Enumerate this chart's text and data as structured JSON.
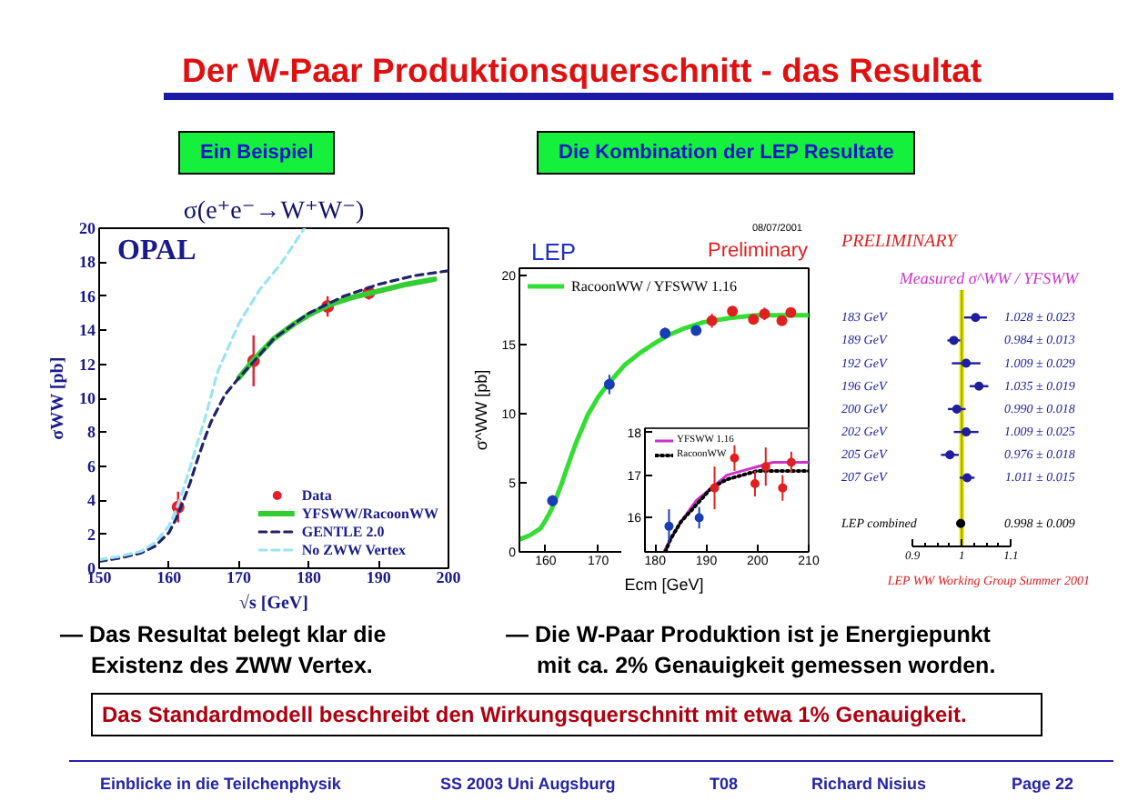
{
  "chart_data": [
    {
      "type": "other",
      "title": "Der W-Paar Produktionsquerschnitt - das Resultat",
      "annotations": [
        "Ein Beispiel",
        "Die Kombination der LEP Resultate",
        "— Das Resultat belegt klar die Existenz des ZWW Vertex.",
        "— Die W-Paar Produktion ist je Energiepunkt mit ca. 2% Genauigkeit gemessen worden.",
        "Das Standardmodell beschreibt den Wirkungsquerschnitt mit etwa 1% Genauigkeit.",
        "Einblicke in die Teilchenphysik",
        "SS 2003 Uni Augsburg",
        "T08",
        "Richard Nisius",
        "Page 22"
      ]
    },
    {
      "type": "line",
      "title": "σ(e⁺e⁻→W⁺W⁻)",
      "xlabel": "√s [GeV]",
      "ylabel": "σWW [pb]",
      "annotations": [
        "OPAL"
      ],
      "xlim": [
        150,
        200
      ],
      "xticks": [
        150,
        160,
        170,
        180,
        190,
        200
      ],
      "ylim": [
        0,
        20
      ],
      "yticks": [
        0,
        2,
        4,
        6,
        8,
        10,
        12,
        14,
        16,
        18,
        20
      ],
      "legend": "bottom right",
      "series": [
        {
          "name": "Data",
          "type": "scatter",
          "color": "#e4202c",
          "marker": "circle",
          "x": [
            161.3,
            172.1,
            182.7,
            188.6
          ],
          "values": [
            3.6,
            12.2,
            15.4,
            16.2
          ],
          "errors": [
            0.9,
            1.5,
            0.6,
            0.4
          ]
        },
        {
          "name": "YFSWW/RacoonWW",
          "type": "line",
          "color": "#33cc33",
          "line_style": "solid",
          "x": [
            170,
            172,
            175,
            178,
            180,
            183,
            186,
            190,
            194,
            198
          ],
          "values": [
            11.2,
            12.2,
            13.5,
            14.4,
            14.9,
            15.5,
            15.9,
            16.3,
            16.7,
            17.0
          ]
        },
        {
          "name": "GENTLE 2.0",
          "type": "line",
          "color": "#22226a",
          "line_style": "dashed",
          "x": [
            150,
            153,
            156,
            158,
            160,
            161,
            162,
            163,
            164,
            165,
            166,
            168,
            170,
            172,
            175,
            180,
            185,
            190,
            195,
            200
          ],
          "values": [
            0.4,
            0.6,
            0.9,
            1.3,
            2.1,
            2.9,
            3.9,
            5.0,
            6.3,
            7.5,
            8.6,
            10.2,
            11.2,
            12.1,
            13.5,
            15.0,
            16.0,
            16.7,
            17.2,
            17.5
          ]
        },
        {
          "name": "No ZWW Vertex",
          "type": "line",
          "color": "#9be4f2",
          "line_style": "dashed",
          "x": [
            150,
            153,
            156,
            158,
            160,
            161,
            162,
            163,
            164,
            165,
            167,
            170,
            173,
            176,
            179.4
          ],
          "values": [
            0.5,
            0.7,
            1.0,
            1.5,
            2.5,
            3.4,
            4.6,
            5.9,
            7.3,
            8.6,
            11.6,
            14.4,
            16.4,
            17.9,
            20.0
          ]
        }
      ]
    },
    {
      "type": "line",
      "xlabel": "Ecm [GeV]",
      "ylabel": "σ^WW [pb]",
      "annotations": [
        "LEP",
        "Preliminary",
        "08/07/2001"
      ],
      "xlim": [
        155,
        210
      ],
      "xticks": [
        160,
        170,
        {
          "value": 180,
          "label": null
        },
        {
          "value": 190,
          "label": null
        },
        {
          "value": 200,
          "label": null
        },
        {
          "value": 210,
          "label": null
        }
      ],
      "ylim": [
        0,
        20.5
      ],
      "yticks": [
        0,
        5,
        10,
        15,
        20
      ],
      "legend": "top left",
      "series": [
        {
          "name": "RacoonWW / YFSWW 1.16",
          "type": "line",
          "color": "#33dd33",
          "line_style": "solid",
          "x": [
            155,
            157,
            159,
            160,
            161,
            162,
            163,
            164,
            165,
            166,
            168,
            170,
            172,
            175,
            178,
            180,
            183,
            186,
            190,
            195,
            200,
            205,
            210
          ],
          "values": [
            0.9,
            1.2,
            1.7,
            2.3,
            3.0,
            3.9,
            4.9,
            6.0,
            7.1,
            8.1,
            9.9,
            11.2,
            12.2,
            13.5,
            14.4,
            14.9,
            15.6,
            16.1,
            16.6,
            16.9,
            17.1,
            17.1,
            17.1
          ]
        },
        {
          "type": "scatter",
          "color": "#1a3cb4",
          "marker": "circle",
          "x": [
            161.3,
            172.1,
            182.7,
            188.6
          ],
          "values": [
            3.7,
            12.1,
            15.8,
            16.0
          ],
          "errors": [
            0.4,
            0.7,
            0.4,
            0.25
          ]
        },
        {
          "type": "scatter",
          "color": "#e02020",
          "marker": "circle",
          "x": [
            191.6,
            195.5,
            199.5,
            201.6,
            204.9,
            206.6
          ],
          "values": [
            16.7,
            17.4,
            16.8,
            17.2,
            16.7,
            17.3
          ],
          "errors": [
            0.5,
            0.3,
            0.3,
            0.45,
            0.3,
            0.25
          ]
        }
      ]
    },
    {
      "type": "line",
      "xlim": [
        178,
        210
      ],
      "xticks": [
        180,
        190,
        200,
        210
      ],
      "ylim": [
        15.2,
        18.1
      ],
      "yticks": [
        16,
        17,
        18
      ],
      "legend": "top left",
      "series": [
        {
          "name": "YFSWW 1.16",
          "type": "line",
          "color": "#cc33cc",
          "line_style": "solid",
          "x": [
            181.7,
            183,
            185,
            188,
            191,
            194,
            197,
            200,
            203,
            206,
            210
          ],
          "values": [
            15.2,
            15.5,
            15.9,
            16.4,
            16.7,
            17.0,
            17.1,
            17.2,
            17.3,
            17.3,
            17.3
          ]
        },
        {
          "name": "RacoonWW",
          "type": "line",
          "color": "#000000",
          "line_style": "dotted",
          "x": [
            182,
            183,
            185,
            188,
            191,
            194,
            197,
            200,
            203,
            206,
            210
          ],
          "values": [
            15.2,
            15.5,
            15.9,
            16.3,
            16.7,
            16.9,
            17.0,
            17.1,
            17.1,
            17.1,
            17.1
          ]
        },
        {
          "type": "scatter",
          "color": "#1a3cb4",
          "marker": "circle",
          "x": [
            182.7,
            188.6
          ],
          "values": [
            15.8,
            16.0
          ],
          "errors": [
            0.4,
            0.25
          ]
        },
        {
          "type": "scatter",
          "color": "#e02020",
          "marker": "circle",
          "x": [
            191.6,
            195.5,
            199.5,
            201.6,
            204.9,
            206.6
          ],
          "values": [
            16.7,
            17.4,
            16.8,
            17.2,
            16.7,
            17.3
          ],
          "errors": [
            0.5,
            0.3,
            0.3,
            0.45,
            0.3,
            0.25
          ]
        }
      ]
    },
    {
      "type": "scatter",
      "orientation": "horizontal",
      "title": "Measured σ^WW / YFSWW",
      "annotations": [
        "PRELIMINARY",
        "LEP WW Working Group Summer 2001"
      ],
      "categories": [
        "183 GeV",
        "189 GeV",
        "192 GeV",
        "196 GeV",
        "200 GeV",
        "202 GeV",
        "205 GeV",
        "207 GeV",
        "LEP combined"
      ],
      "xlim": [
        0.9,
        1.1
      ],
      "xticks": [
        0.9,
        {
          "value": 0.925,
          "label": null
        },
        {
          "value": 0.95,
          "label": null
        },
        {
          "value": 0.975,
          "label": null
        },
        1,
        {
          "value": 1.025,
          "label": null
        },
        {
          "value": 1.05,
          "label": null
        },
        {
          "value": 1.075,
          "label": null
        },
        1.1
      ],
      "bands": [
        {
          "axis": "x",
          "from": 0.995,
          "to": 1.005,
          "color": "#f2f200"
        }
      ],
      "ref_lines": [
        {
          "axis": "x",
          "value": 1,
          "color": "#a0a000"
        }
      ],
      "series": [
        {
          "type": "scatter",
          "color": "#1e1e9e",
          "marker": "circle",
          "values": [
            1.028,
            0.984,
            1.009,
            1.035,
            0.99,
            1.009,
            0.976,
            1.011,
            null
          ],
          "errors": [
            0.023,
            0.013,
            0.029,
            0.019,
            0.018,
            0.025,
            0.018,
            0.015,
            null
          ],
          "value_labels": [
            "1.028 ± 0.023",
            "0.984 ± 0.013",
            "1.009 ± 0.029",
            "1.035 ± 0.019",
            "0.990 ± 0.018",
            "1.009 ± 0.025",
            "0.976 ± 0.018",
            "1.011 ± 0.015",
            null
          ]
        },
        {
          "type": "scatter",
          "color": "#000000",
          "marker": "circle",
          "values": [
            null,
            null,
            null,
            null,
            null,
            null,
            null,
            null,
            0.998
          ],
          "errors": [
            null,
            null,
            null,
            null,
            null,
            null,
            null,
            null,
            0.009
          ],
          "value_labels": [
            null,
            null,
            null,
            null,
            null,
            null,
            null,
            null,
            "0.998 ± 0.009"
          ]
        }
      ]
    }
  ]
}
